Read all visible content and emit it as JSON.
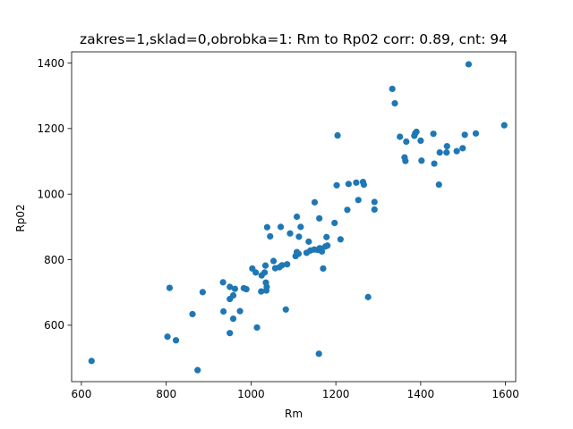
{
  "chart_data": {
    "type": "scatter",
    "title": "zakres=1,sklad=0,obrobka=1: Rm to Rp02 corr: 0.89, cnt: 94",
    "xlabel": "Rm",
    "ylabel": "Rp02",
    "xlim": [
      577,
      1624
    ],
    "ylim": [
      428,
      1434
    ],
    "xticks": [
      600,
      800,
      1000,
      1200,
      1400,
      1600
    ],
    "yticks": [
      600,
      800,
      1000,
      1200,
      1400
    ],
    "color": "#1f77b4",
    "grid": false,
    "legend": false,
    "series": [
      {
        "points": [
          [
            624,
            491
          ],
          [
            803,
            565
          ],
          [
            808,
            714
          ],
          [
            823,
            554
          ],
          [
            862,
            634
          ],
          [
            874,
            463
          ],
          [
            886,
            701
          ],
          [
            934,
            731
          ],
          [
            935,
            642
          ],
          [
            950,
            576
          ],
          [
            950,
            680
          ],
          [
            950,
            717
          ],
          [
            958,
            691
          ],
          [
            958,
            620
          ],
          [
            962,
            711
          ],
          [
            974,
            643
          ],
          [
            983,
            713
          ],
          [
            989,
            710
          ],
          [
            1003,
            773
          ],
          [
            1011,
            761
          ],
          [
            1014,
            593
          ],
          [
            1024,
            703
          ],
          [
            1025,
            752
          ],
          [
            1032,
            761
          ],
          [
            1034,
            782
          ],
          [
            1035,
            730
          ],
          [
            1036,
            706
          ],
          [
            1037,
            717
          ],
          [
            1038,
            899
          ],
          [
            1045,
            871
          ],
          [
            1053,
            796
          ],
          [
            1057,
            774
          ],
          [
            1067,
            777
          ],
          [
            1070,
            900
          ],
          [
            1073,
            783
          ],
          [
            1082,
            648
          ],
          [
            1085,
            786
          ],
          [
            1092,
            880
          ],
          [
            1105,
            811
          ],
          [
            1108,
            931
          ],
          [
            1108,
            823
          ],
          [
            1112,
            818
          ],
          [
            1113,
            870
          ],
          [
            1117,
            900
          ],
          [
            1131,
            821
          ],
          [
            1136,
            855
          ],
          [
            1140,
            828
          ],
          [
            1149,
            831
          ],
          [
            1150,
            975
          ],
          [
            1157,
            830
          ],
          [
            1160,
            513
          ],
          [
            1161,
            926
          ],
          [
            1162,
            835
          ],
          [
            1167,
            825
          ],
          [
            1170,
            773
          ],
          [
            1175,
            840
          ],
          [
            1178,
            869
          ],
          [
            1180,
            843
          ],
          [
            1197,
            912
          ],
          [
            1202,
            1027
          ],
          [
            1204,
            1179
          ],
          [
            1211,
            862
          ],
          [
            1227,
            952
          ],
          [
            1230,
            1031
          ],
          [
            1248,
            1035
          ],
          [
            1253,
            982
          ],
          [
            1264,
            1037
          ],
          [
            1266,
            1029
          ],
          [
            1276,
            686
          ],
          [
            1291,
            976
          ],
          [
            1291,
            953
          ],
          [
            1333,
            1321
          ],
          [
            1339,
            1277
          ],
          [
            1351,
            1175
          ],
          [
            1362,
            1112
          ],
          [
            1364,
            1101
          ],
          [
            1366,
            1160
          ],
          [
            1385,
            1178
          ],
          [
            1387,
            1185
          ],
          [
            1390,
            1190
          ],
          [
            1400,
            1163
          ],
          [
            1402,
            1102
          ],
          [
            1430,
            1184
          ],
          [
            1432,
            1093
          ],
          [
            1443,
            1029
          ],
          [
            1445,
            1127
          ],
          [
            1461,
            1127
          ],
          [
            1462,
            1146
          ],
          [
            1485,
            1131
          ],
          [
            1499,
            1140
          ],
          [
            1504,
            1181
          ],
          [
            1513,
            1396
          ],
          [
            1530,
            1185
          ],
          [
            1597,
            1210
          ]
        ]
      }
    ]
  }
}
